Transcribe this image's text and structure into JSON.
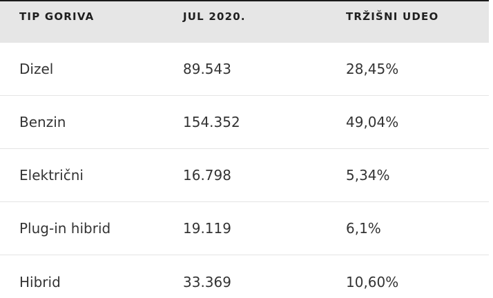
{
  "table": {
    "headers": [
      "TIP GORIVA",
      "JUL 2020.",
      "TRŽIŠNI UDEO"
    ],
    "rows": [
      [
        "Dizel",
        "89.543",
        "28,45%"
      ],
      [
        "Benzin",
        "154.352",
        "49,04%"
      ],
      [
        "Električni",
        "16.798",
        "5,34%"
      ],
      [
        "Plug-in hibrid",
        "19.119",
        "6,1%"
      ],
      [
        "Hibrid",
        "33.369",
        "10,60%"
      ]
    ]
  }
}
